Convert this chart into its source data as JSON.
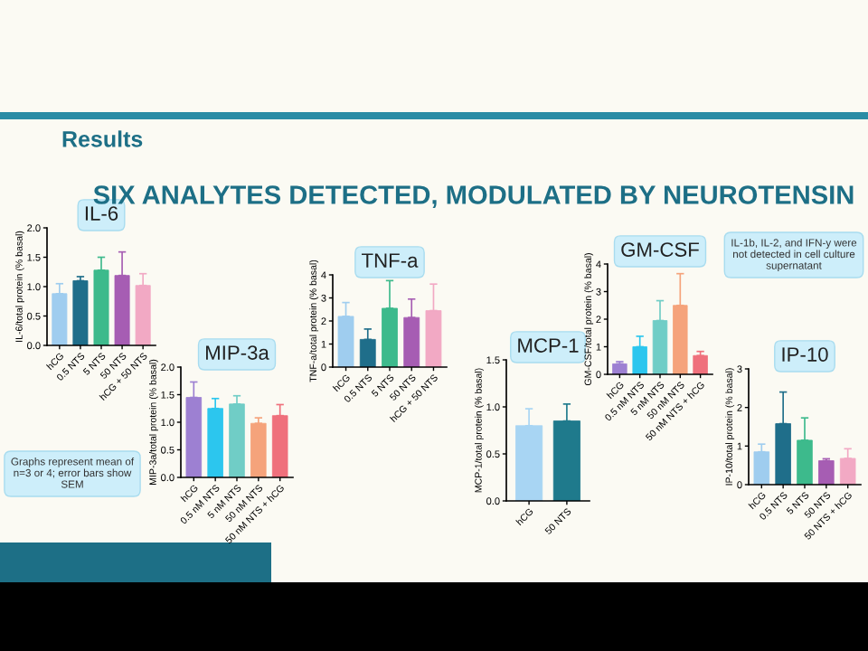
{
  "chart_data": [
    {
      "type": "bar",
      "title": "IL-6",
      "ylabel": "IL-6/total protein (% basal)",
      "categories": [
        "hCG",
        "0.5 NTS",
        "5 NTS",
        "50 NTS",
        "hCG + 50 NTS"
      ],
      "values": [
        0.88,
        1.1,
        1.28,
        1.19,
        1.02
      ],
      "errors": [
        [
          0.88,
          1.05
        ],
        [
          1.1,
          1.17
        ],
        [
          1.28,
          1.5
        ],
        [
          1.19,
          1.59
        ],
        [
          1.02,
          1.22
        ]
      ],
      "colors": [
        "#9fcdef",
        "#1f6e8a",
        "#3dba8c",
        "#a65db3",
        "#f2a9c4"
      ],
      "ylim": [
        0,
        2
      ],
      "yticks": [
        {
          "value": 0,
          "label": "0.0"
        },
        {
          "value": 0.5,
          "label": "0.5"
        },
        {
          "value": 1,
          "label": "1.0"
        },
        {
          "value": 1.5,
          "label": "1.5"
        },
        {
          "value": 2,
          "label": "2.0"
        }
      ],
      "annotations": [
        "Results",
        "SIX ANALYTES DETECTED, MODULATED BY NEUROTENSIN",
        "Graphs represent mean of n=3 or 4; error bars show SEM",
        "IL-1b, IL-2, and IFN-y were not detected in cell culture supernatant"
      ]
    },
    {
      "type": "bar",
      "title": "MIP-3a",
      "ylabel": "MIP-3a/total protein (% basal)",
      "categories": [
        "hCG",
        "0.5 nM NTS",
        "5 nM NTS",
        "50 nM NTS",
        "50 nM NTS + hCG"
      ],
      "values": [
        1.45,
        1.25,
        1.33,
        0.98,
        1.12
      ],
      "errors": [
        [
          1.45,
          1.73
        ],
        [
          1.25,
          1.43
        ],
        [
          1.33,
          1.48
        ],
        [
          0.98,
          1.08
        ],
        [
          1.12,
          1.32
        ]
      ],
      "colors": [
        "#9d80d2",
        "#2cc6ee",
        "#70cdc6",
        "#f5a37b",
        "#ef707c"
      ],
      "ylim": [
        0,
        2
      ],
      "yticks": [
        {
          "value": 0,
          "label": "0.0"
        },
        {
          "value": 0.5,
          "label": "0.5"
        },
        {
          "value": 1,
          "label": "1.0"
        },
        {
          "value": 1.5,
          "label": "1.5"
        },
        {
          "value": 2,
          "label": "2.0"
        }
      ]
    },
    {
      "type": "bar",
      "title": "TNF-a",
      "ylabel": "TNF-a/total protein (% basal)",
      "categories": [
        "hCG",
        "0.5 NTS",
        "5 NTS",
        "50 NTS",
        "hCG + 50 NTS"
      ],
      "values": [
        2.2,
        1.2,
        2.55,
        2.15,
        2.45
      ],
      "errors": [
        [
          2.2,
          2.8
        ],
        [
          1.2,
          1.65
        ],
        [
          2.55,
          3.75
        ],
        [
          2.15,
          2.95
        ],
        [
          2.45,
          3.6
        ]
      ],
      "colors": [
        "#9fcdef",
        "#1f6e8a",
        "#3dba8c",
        "#a65db3",
        "#f2a9c4"
      ],
      "ylim": [
        0,
        4
      ],
      "yticks": [
        0,
        1,
        2,
        3,
        4
      ]
    },
    {
      "type": "bar",
      "title": "MCP-1",
      "ylabel": "MCP-1/total protein (% basal)",
      "categories": [
        "hCG",
        "50 NTS"
      ],
      "values": [
        0.8,
        0.85
      ],
      "errors": [
        [
          0.8,
          0.98
        ],
        [
          0.85,
          1.03
        ]
      ],
      "colors": [
        "#a8d5f3",
        "#1f7a8c"
      ],
      "ylim": [
        0,
        1.5
      ],
      "yticks": [
        {
          "value": 0,
          "label": "0.0"
        },
        {
          "value": 0.5,
          "label": "0.5"
        },
        {
          "value": 1,
          "label": "1.0"
        },
        {
          "value": 1.5,
          "label": "1.5"
        }
      ]
    },
    {
      "type": "bar",
      "title": "GM-CSF",
      "ylabel": "GM-CSF/total protein (% basal)",
      "categories": [
        "hCG",
        "0.5 nM NTS",
        "5 nM NTS",
        "50 nM NTS",
        "50 nM NTS + hCG"
      ],
      "values": [
        0.38,
        1.0,
        1.95,
        2.5,
        0.68
      ],
      "errors": [
        [
          0.38,
          0.46
        ],
        [
          1.0,
          1.38
        ],
        [
          1.95,
          2.67
        ],
        [
          2.5,
          3.65
        ],
        [
          0.68,
          0.83
        ]
      ],
      "colors": [
        "#9d80d2",
        "#2cc6ee",
        "#70cdc6",
        "#f5a37b",
        "#ef707c"
      ],
      "ylim": [
        0,
        4
      ],
      "yticks": [
        0,
        1,
        2,
        3,
        4
      ]
    },
    {
      "type": "bar",
      "title": "IP-10",
      "ylabel": "IP-10/total protein (% basal)",
      "categories": [
        "hCG",
        "0.5 NTS",
        "5 NTS",
        "50 NTS",
        "50 NTS + hCG"
      ],
      "values": [
        0.85,
        1.58,
        1.15,
        0.62,
        0.68
      ],
      "errors": [
        [
          0.85,
          1.05
        ],
        [
          1.58,
          2.4
        ],
        [
          1.15,
          1.73
        ],
        [
          0.62,
          0.67
        ],
        [
          0.68,
          0.93
        ]
      ],
      "colors": [
        "#9fcdef",
        "#1f6e8a",
        "#3dba8c",
        "#a65db3",
        "#f2a9c4"
      ],
      "ylim": [
        0,
        3
      ],
      "yticks": [
        0,
        1,
        2,
        3
      ]
    }
  ]
}
